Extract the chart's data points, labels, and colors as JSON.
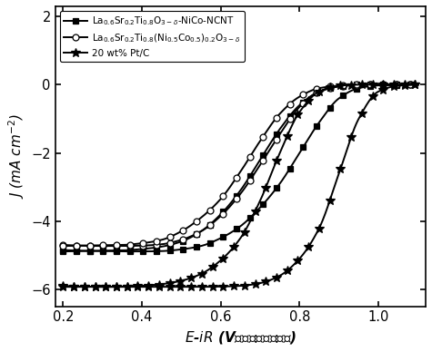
{
  "xlim": [
    0.18,
    1.12
  ],
  "ylim": [
    -6.5,
    2.3
  ],
  "xticks": [
    0.2,
    0.4,
    0.6,
    0.8,
    1.0
  ],
  "yticks": [
    -6,
    -4,
    -2,
    0,
    2
  ],
  "line_color": "#000000",
  "background_color": "#ffffff",
  "legend": [
    "La$_{0.6}$Sr$_{0.2}$Ti$_{0.8}$O$_{3-\\delta}$-NiCo-NCNT",
    "La$_{0.6}$Sr$_{0.2}$Ti$_{0.8}$(Ni$_{0.5}$Co$_{0.5}$)$_{0.2}$O$_{3-\\delta}$",
    "20 wt% Pt/C"
  ],
  "markers": [
    "s",
    "o",
    "*"
  ],
  "marker_sizes": [
    4,
    5,
    7
  ],
  "marker_every": [
    15,
    15,
    12
  ],
  "curve1_x": [
    0.2,
    0.25,
    0.3,
    0.35,
    0.4,
    0.45,
    0.5,
    0.55,
    0.6,
    0.65,
    0.7,
    0.75,
    0.8,
    0.85,
    0.9,
    0.95,
    1.0,
    1.05,
    1.1
  ],
  "curve1_y_down": [
    -4.85,
    -4.87,
    -4.88,
    -4.89,
    -4.89,
    -4.88,
    -4.83,
    -4.73,
    -4.5,
    -4.15,
    -3.6,
    -2.9,
    -2.0,
    -1.1,
    -0.4,
    -0.1,
    -0.02,
    -0.005,
    0.0
  ],
  "curve1_y_up": [
    -4.89,
    -4.88,
    -4.87,
    -4.86,
    -4.82,
    -4.75,
    -4.6,
    -4.3,
    -3.8,
    -3.1,
    -2.2,
    -1.3,
    -0.6,
    -0.2,
    -0.05,
    0.0,
    0.0,
    0.0,
    0.0
  ],
  "curve2_x": [
    0.2,
    0.25,
    0.3,
    0.35,
    0.4,
    0.45,
    0.5,
    0.55,
    0.6,
    0.65,
    0.7,
    0.75,
    0.8,
    0.85,
    0.9,
    0.95,
    1.0,
    1.05,
    1.1
  ],
  "curve2_y_down": [
    -4.7,
    -4.72,
    -4.73,
    -4.73,
    -4.72,
    -4.68,
    -4.55,
    -4.3,
    -3.85,
    -3.2,
    -2.35,
    -1.45,
    -0.65,
    -0.2,
    -0.05,
    -0.01,
    0.0,
    0.0,
    0.0
  ],
  "curve2_y_up": [
    -4.73,
    -4.72,
    -4.71,
    -4.7,
    -4.65,
    -4.55,
    -4.3,
    -3.9,
    -3.35,
    -2.55,
    -1.65,
    -0.85,
    -0.35,
    -0.1,
    -0.03,
    0.0,
    0.0,
    0.0,
    0.0
  ],
  "curve3_x": [
    0.2,
    0.25,
    0.3,
    0.35,
    0.4,
    0.45,
    0.5,
    0.55,
    0.6,
    0.65,
    0.7,
    0.75,
    0.8,
    0.85,
    0.9,
    0.95,
    1.0,
    1.05,
    1.1
  ],
  "curve3_y_down": [
    -5.9,
    -5.92,
    -5.93,
    -5.93,
    -5.93,
    -5.93,
    -5.93,
    -5.93,
    -5.92,
    -5.9,
    -5.82,
    -5.6,
    -5.1,
    -4.2,
    -2.6,
    -1.0,
    -0.2,
    -0.03,
    0.0
  ],
  "curve3_y_up": [
    -5.93,
    -5.93,
    -5.93,
    -5.92,
    -5.9,
    -5.85,
    -5.75,
    -5.55,
    -5.15,
    -4.5,
    -3.4,
    -2.0,
    -0.8,
    -0.2,
    -0.03,
    0.0,
    0.0,
    0.0,
    0.0
  ]
}
